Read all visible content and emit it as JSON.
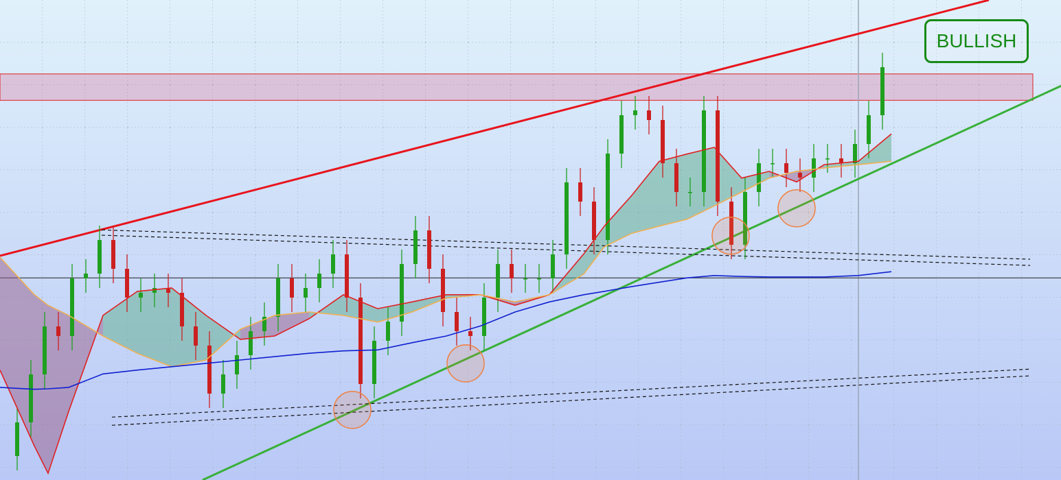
{
  "chart_data": {
    "type": "candlestick",
    "xlim": [
      0,
      1545
    ],
    "ylim": [
      0,
      100
    ],
    "grid": true,
    "up_color": "#1fa01f",
    "down_color": "#cc2020",
    "x": [
      25,
      45,
      65,
      85,
      105,
      125,
      145,
      165,
      185,
      205,
      225,
      245,
      265,
      285,
      305,
      325,
      345,
      365,
      385,
      405,
      425,
      445,
      465,
      485,
      505,
      525,
      545,
      565,
      585,
      605,
      625,
      645,
      665,
      685,
      705,
      725,
      745,
      765,
      785,
      805,
      825,
      845,
      865,
      885,
      905,
      925,
      945,
      965,
      985,
      1005,
      1025,
      1045,
      1065,
      1085,
      1105,
      1125,
      1145,
      1165,
      1185,
      1205,
      1225,
      1245,
      1265,
      1285
    ],
    "open": [
      5,
      12,
      22,
      32,
      30,
      42,
      43,
      50,
      44,
      38,
      39,
      40,
      39,
      32,
      28,
      18,
      22,
      26,
      31,
      34,
      42,
      38,
      40,
      43,
      47,
      38,
      20,
      29,
      33,
      45,
      52,
      44,
      35,
      31,
      30,
      38,
      45,
      42,
      42,
      42,
      47,
      62,
      58,
      50,
      68,
      76,
      77,
      75,
      66,
      60,
      60,
      77,
      58,
      49,
      60,
      66,
      66,
      64,
      63,
      67,
      67,
      66,
      70,
      76
    ],
    "high": [
      15,
      25,
      35,
      35,
      45,
      46,
      53,
      53,
      47,
      42,
      43,
      43,
      42,
      35,
      31,
      25,
      29,
      34,
      37,
      45,
      45,
      43,
      46,
      50,
      50,
      41,
      32,
      36,
      48,
      55,
      55,
      47,
      38,
      34,
      41,
      48,
      48,
      45,
      45,
      50,
      65,
      65,
      61,
      71,
      79,
      80,
      80,
      78,
      69,
      63,
      80,
      80,
      61,
      63,
      69,
      69,
      69,
      67,
      70,
      70,
      70,
      73,
      79,
      89
    ],
    "low": [
      2,
      9,
      19,
      27,
      27,
      39,
      40,
      41,
      35,
      35,
      36,
      36,
      29,
      25,
      15,
      15,
      19,
      23,
      28,
      31,
      35,
      35,
      37,
      40,
      35,
      17,
      17,
      26,
      30,
      42,
      41,
      32,
      28,
      27,
      27,
      35,
      39,
      39,
      39,
      39,
      44,
      55,
      47,
      47,
      65,
      73,
      72,
      63,
      57,
      57,
      57,
      55,
      46,
      46,
      57,
      63,
      61,
      60,
      60,
      64,
      63,
      63,
      67,
      73
    ],
    "close": [
      12,
      22,
      32,
      30,
      42,
      43,
      50,
      44,
      38,
      39,
      40,
      39,
      32,
      28,
      18,
      22,
      26,
      31,
      34,
      42,
      38,
      40,
      43,
      47,
      38,
      20,
      29,
      33,
      45,
      52,
      44,
      35,
      31,
      30,
      38,
      45,
      42,
      42,
      42,
      47,
      62,
      58,
      50,
      68,
      76,
      77,
      75,
      66,
      60,
      60,
      77,
      58,
      49,
      60,
      66,
      66,
      64,
      63,
      67,
      67,
      66,
      70,
      76,
      86
    ],
    "ma_x": [
      0,
      50,
      70,
      100,
      150,
      200,
      250,
      300,
      350,
      400,
      450,
      500,
      550,
      600,
      650,
      700,
      750,
      800,
      850,
      880,
      920,
      960,
      1000,
      1040,
      1080,
      1120,
      1160,
      1200,
      1250,
      1298
    ],
    "moving_averages": [
      {
        "color": "#e02020",
        "values": [
          22.9,
          7.1,
          1.4,
          14.3,
          34.3,
          39.3,
          40,
          34.3,
          29.3,
          30,
          33.6,
          38.6,
          35.7,
          37.1,
          38.6,
          38.6,
          36.4,
          38.6,
          47.1,
          52.9,
          59.3,
          66.4,
          67.9,
          69.3,
          62.9,
          64.3,
          62.1,
          65.7,
          66.4,
          72.1
        ]
      },
      {
        "color": "#f0b050",
        "values": [
          46.4,
          38.6,
          36.4,
          34.3,
          30,
          26.4,
          23.6,
          25,
          31.4,
          34.3,
          35,
          34.3,
          32.9,
          35,
          37.9,
          38.6,
          37.1,
          38.6,
          42.9,
          48.6,
          51.4,
          52.9,
          54.3,
          57.1,
          60,
          62.9,
          64.3,
          65,
          65.7,
          66.4
        ]
      },
      {
        "color": "#1020d0",
        "values": [
          19.3,
          18.9,
          19,
          19.3,
          22.1,
          22.9,
          23.6,
          24.3,
          25,
          25.7,
          26.4,
          26.9,
          27.1,
          28.6,
          30,
          32.1,
          35,
          37.1,
          38.6,
          39.3,
          40.3,
          41.2,
          42.1,
          42.6,
          42.4,
          42.3,
          42.3,
          42.3,
          42.6,
          43.4
        ]
      }
    ],
    "band_colors": {
      "above": "#5fae8c",
      "below": "#9a5f8a"
    },
    "trendlines": [
      {
        "color": "#e8141c",
        "dashed": false,
        "x": [
          0,
          1440
        ],
        "values": [
          46.7,
          100
        ]
      },
      {
        "color": "#38b038",
        "dashed": false,
        "x": [
          295,
          1545
        ],
        "values": [
          0,
          82.1
        ]
      },
      {
        "color": "#111111",
        "dashed": true,
        "x": [
          148,
          1500
        ],
        "values": [
          52.1,
          46
        ]
      },
      {
        "color": "#111111",
        "dashed": true,
        "x": [
          148,
          1500
        ],
        "values": [
          51,
          44.7
        ]
      },
      {
        "color": "#111111",
        "dashed": true,
        "x": [
          163,
          1500
        ],
        "values": [
          13.1,
          23.1
        ]
      },
      {
        "color": "#111111",
        "dashed": true,
        "x": [
          163,
          1500
        ],
        "values": [
          11.4,
          21.7
        ]
      }
    ],
    "zone": {
      "x": [
        0,
        1504
      ],
      "values": [
        79.1,
        84.6
      ],
      "color": "#e0507a"
    },
    "level": 42.1,
    "marker_x": 1250,
    "highlights": {
      "x": [
        513,
        678,
        1064,
        1160
      ],
      "values": [
        14.6,
        24.3,
        50.9,
        56.6
      ],
      "color": "#f08040"
    },
    "annotation": "BULLISH"
  }
}
